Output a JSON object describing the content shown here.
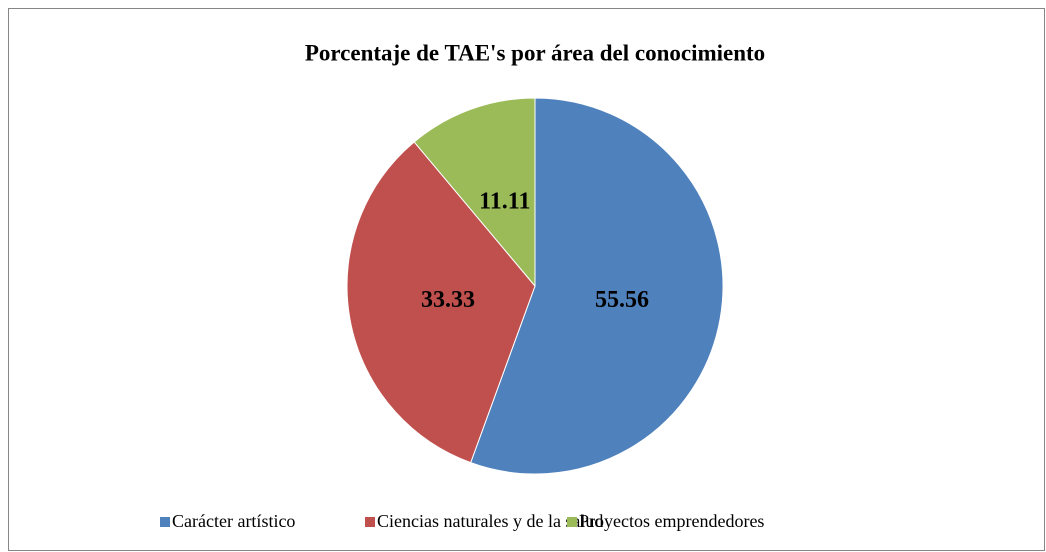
{
  "chart_data": {
    "type": "pie",
    "title": "Porcentaje de TAE's por área del conocimiento",
    "categories": [
      "Carácter artístico",
      "Ciencias naturales y de la salud",
      "Proyectos emprendedores"
    ],
    "values": [
      55.56,
      33.33,
      11.11
    ],
    "colors": [
      "#4f81bd",
      "#c0504d",
      "#9bbb59"
    ],
    "legend": "bottom"
  }
}
